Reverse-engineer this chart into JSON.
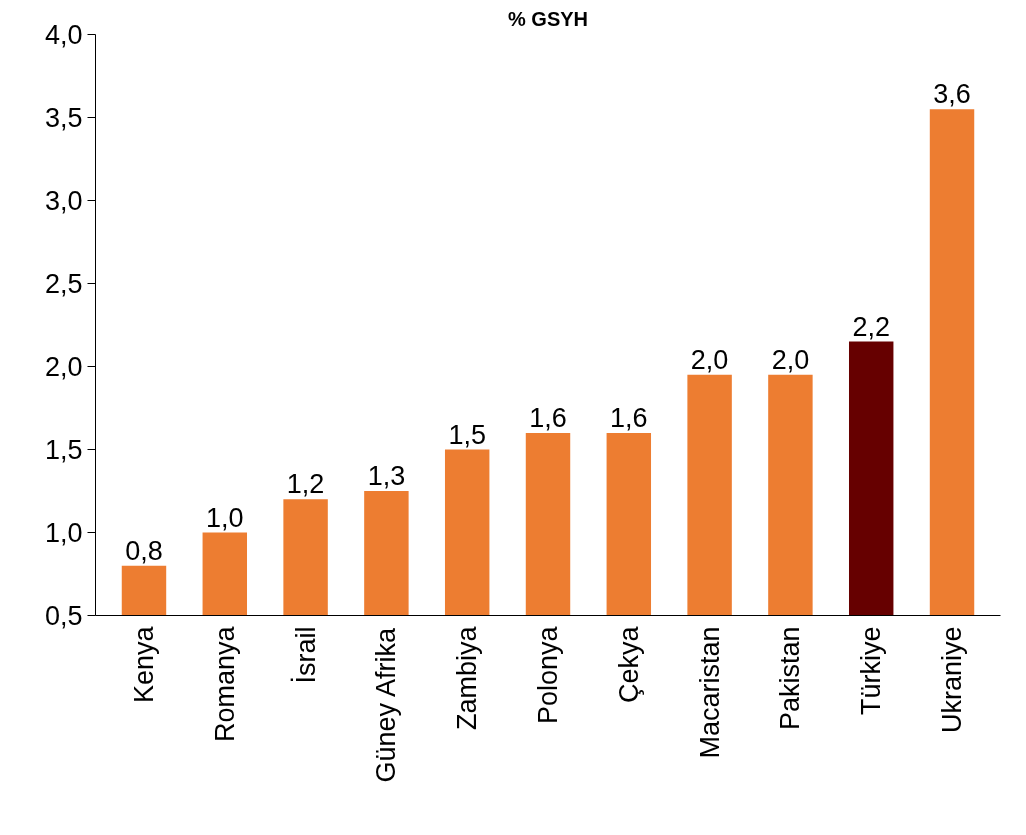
{
  "chart_data": {
    "type": "bar",
    "title": "% GSYH",
    "categories": [
      "Kenya",
      "Romanya",
      "İsrail",
      "Güney Afrika",
      "Zambiya",
      "Polonya",
      "Çekya",
      "Macaristan",
      "Pakistan",
      "Türkiye",
      "Ukraniye"
    ],
    "values": [
      0.8,
      1.0,
      1.2,
      1.25,
      1.5,
      1.6,
      1.6,
      1.95,
      1.95,
      2.15,
      3.55
    ],
    "colors": [
      "#ed7d31",
      "#ed7d31",
      "#ed7d31",
      "#ed7d31",
      "#ed7d31",
      "#ed7d31",
      "#ed7d31",
      "#ed7d31",
      "#ed7d31",
      "#660000",
      "#ed7d31"
    ],
    "value_labels": [
      "0,8",
      "1,0",
      "1,2",
      "1,3",
      "1,5",
      "1,6",
      "1,6",
      "2,0",
      "2,0",
      "2,2",
      "3,6"
    ],
    "ylim": [
      0.5,
      4.0
    ],
    "yticks": [
      {
        "value": 0.5,
        "label": "0,5"
      },
      {
        "value": 1.0,
        "label": "1,0"
      },
      {
        "value": 1.5,
        "label": "1,5"
      },
      {
        "value": 2.0,
        "label": "2,0"
      },
      {
        "value": 2.5,
        "label": "2,5"
      },
      {
        "value": 3.0,
        "label": "3,0"
      },
      {
        "value": 3.5,
        "label": "3,5"
      },
      {
        "value": 4.0,
        "label": "4,0"
      }
    ],
    "grid": false
  }
}
